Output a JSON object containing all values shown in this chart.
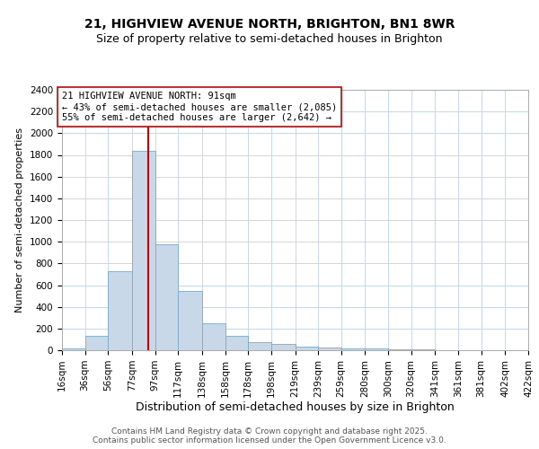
{
  "title1": "21, HIGHVIEW AVENUE NORTH, BRIGHTON, BN1 8WR",
  "title2": "Size of property relative to semi-detached houses in Brighton",
  "xlabel": "Distribution of semi-detached houses by size in Brighton",
  "ylabel": "Number of semi-detached properties",
  "bin_edges": [
    16,
    36,
    56,
    77,
    97,
    117,
    138,
    158,
    178,
    198,
    219,
    239,
    259,
    280,
    300,
    320,
    341,
    361,
    381,
    402,
    422
  ],
  "bar_heights": [
    20,
    130,
    730,
    1840,
    980,
    550,
    250,
    130,
    75,
    55,
    35,
    25,
    20,
    15,
    8,
    5,
    3,
    2,
    1,
    1
  ],
  "bar_color": "#c8d8e8",
  "bar_edgecolor": "#7aaac8",
  "property_size": 91,
  "red_line_color": "#cc0000",
  "annotation_text": "21 HIGHVIEW AVENUE NORTH: 91sqm\n← 43% of semi-detached houses are smaller (2,085)\n55% of semi-detached houses are larger (2,642) →",
  "annotation_box_edgecolor": "#cc0000",
  "annotation_box_facecolor": "#ffffff",
  "ylim": [
    0,
    2400
  ],
  "yticks": [
    0,
    200,
    400,
    600,
    800,
    1000,
    1200,
    1400,
    1600,
    1800,
    2000,
    2200,
    2400
  ],
  "footer_text": "Contains HM Land Registry data © Crown copyright and database right 2025.\nContains public sector information licensed under the Open Government Licence v3.0.",
  "bg_color": "#ffffff",
  "grid_color": "#c8d8e8",
  "title1_fontsize": 10,
  "title2_fontsize": 9,
  "xlabel_fontsize": 9,
  "ylabel_fontsize": 8,
  "tick_fontsize": 7.5,
  "footer_fontsize": 6.5
}
